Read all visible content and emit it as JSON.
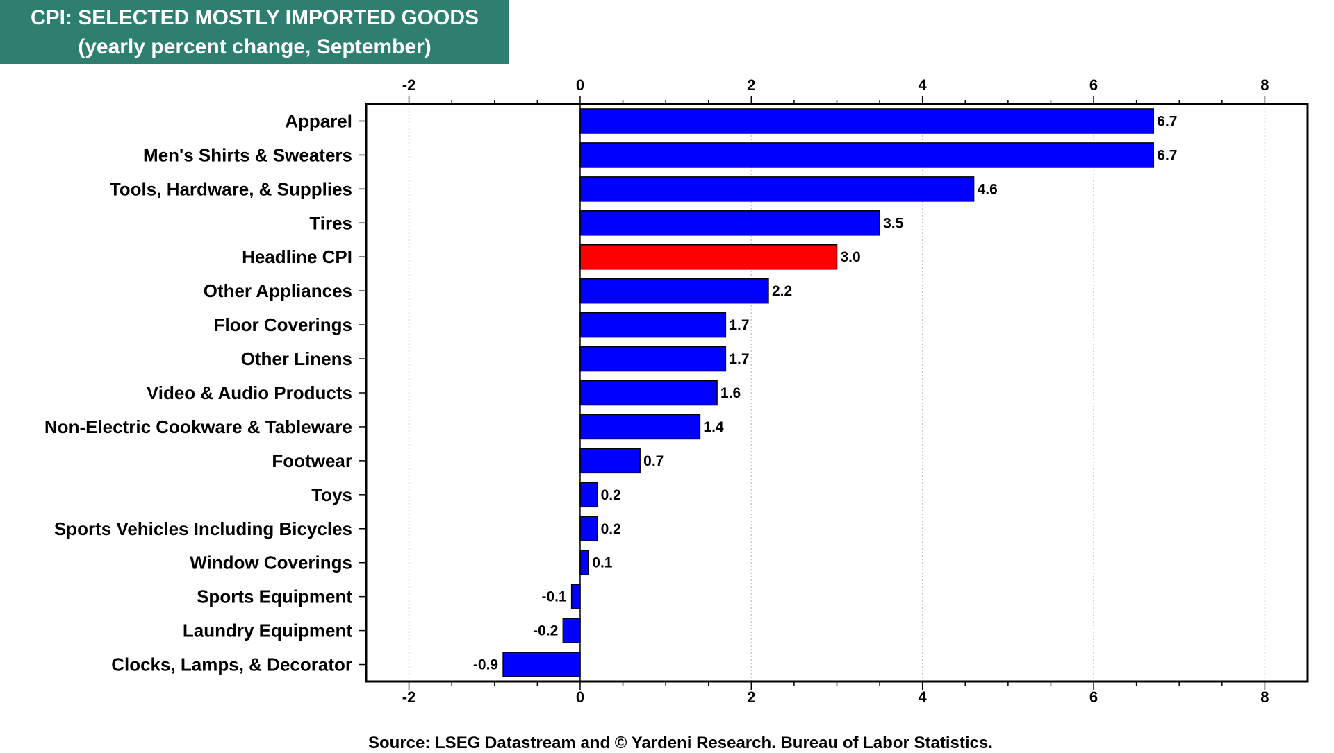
{
  "title": {
    "line1": "CPI: SELECTED MOSTLY IMPORTED GOODS",
    "line2": "(yearly percent change, September)"
  },
  "source": "Source: LSEG Datastream and © Yardeni Research. Bureau of Labor Statistics.",
  "colors": {
    "bar": "#0000ff",
    "highlight": "#ff0000",
    "title_bg": "#2f7f70"
  },
  "chart_data": {
    "type": "bar",
    "orientation": "horizontal",
    "title": "CPI: SELECTED MOSTLY IMPORTED GOODS (yearly percent change, September)",
    "xlim": [
      -2.5,
      8.5
    ],
    "xticks": [
      -2,
      0,
      2,
      4,
      6,
      8
    ],
    "xtick_labels": [
      "-2",
      "0",
      "2",
      "4",
      "6",
      "8"
    ],
    "grid": true,
    "highlight": "Headline CPI",
    "categories": [
      "Apparel",
      "Men's Shirts & Sweaters",
      "Tools, Hardware, & Supplies",
      "Tires",
      "Headline CPI",
      "Other Appliances",
      "Floor Coverings",
      "Other Linens",
      "Video & Audio Products",
      "Non-Electric Cookware & Tableware",
      "Footwear",
      "Toys",
      "Sports Vehicles Including Bicycles",
      "Window Coverings",
      "Sports Equipment",
      "Laundry Equipment",
      "Clocks, Lamps, & Decorator"
    ],
    "values": [
      6.7,
      6.7,
      4.6,
      3.5,
      3.0,
      2.2,
      1.7,
      1.7,
      1.6,
      1.4,
      0.7,
      0.2,
      0.2,
      0.1,
      -0.1,
      -0.2,
      -0.9
    ],
    "value_labels": [
      "6.7",
      "6.7",
      "4.6",
      "3.5",
      "3.0",
      "2.2",
      "1.7",
      "1.7",
      "1.6",
      "1.4",
      "0.7",
      "0.2",
      "0.2",
      "0.1",
      "-0.1",
      "-0.2",
      "-0.9"
    ]
  }
}
